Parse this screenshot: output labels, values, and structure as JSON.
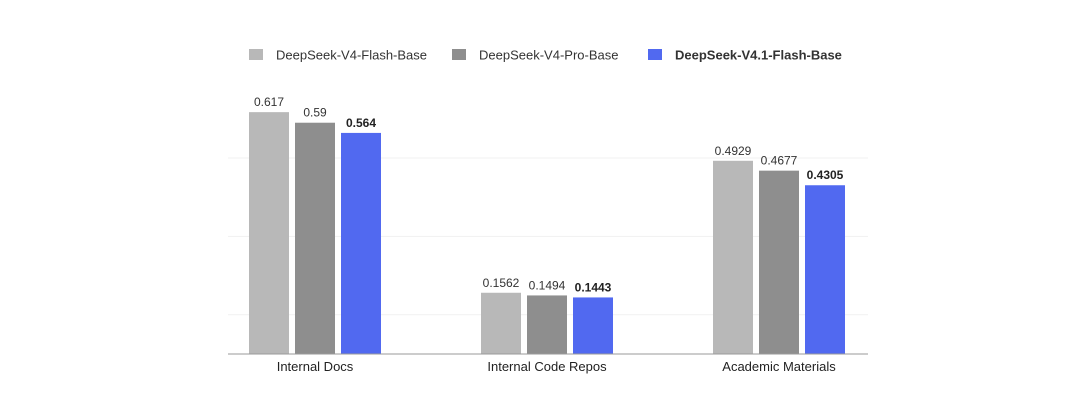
{
  "chart_data": {
    "type": "bar",
    "title": "",
    "xlabel": "",
    "ylabel": "",
    "ylim": [
      0,
      0.7
    ],
    "grid": true,
    "legend_position": "top",
    "categories": [
      "Internal Docs",
      "Internal Code Repos",
      "Academic Materials"
    ],
    "series": [
      {
        "name": "DeepSeek-V4-Flash-Base",
        "color": "#b8b8b8",
        "highlight": false,
        "values": [
          0.617,
          0.1562,
          0.4929
        ],
        "labels": [
          "0.617",
          "0.1562",
          "0.4929"
        ]
      },
      {
        "name": "DeepSeek-V4-Pro-Base",
        "color": "#8e8e8e",
        "highlight": false,
        "values": [
          0.59,
          0.1494,
          0.4677
        ],
        "labels": [
          "0.59",
          "0.1494",
          "0.4677"
        ]
      },
      {
        "name": "DeepSeek-V4.1-Flash-Base",
        "color": "#5169f0",
        "highlight": true,
        "values": [
          0.564,
          0.1443,
          0.4305
        ],
        "labels": [
          "0.564",
          "0.1443",
          "0.4305"
        ]
      }
    ]
  }
}
